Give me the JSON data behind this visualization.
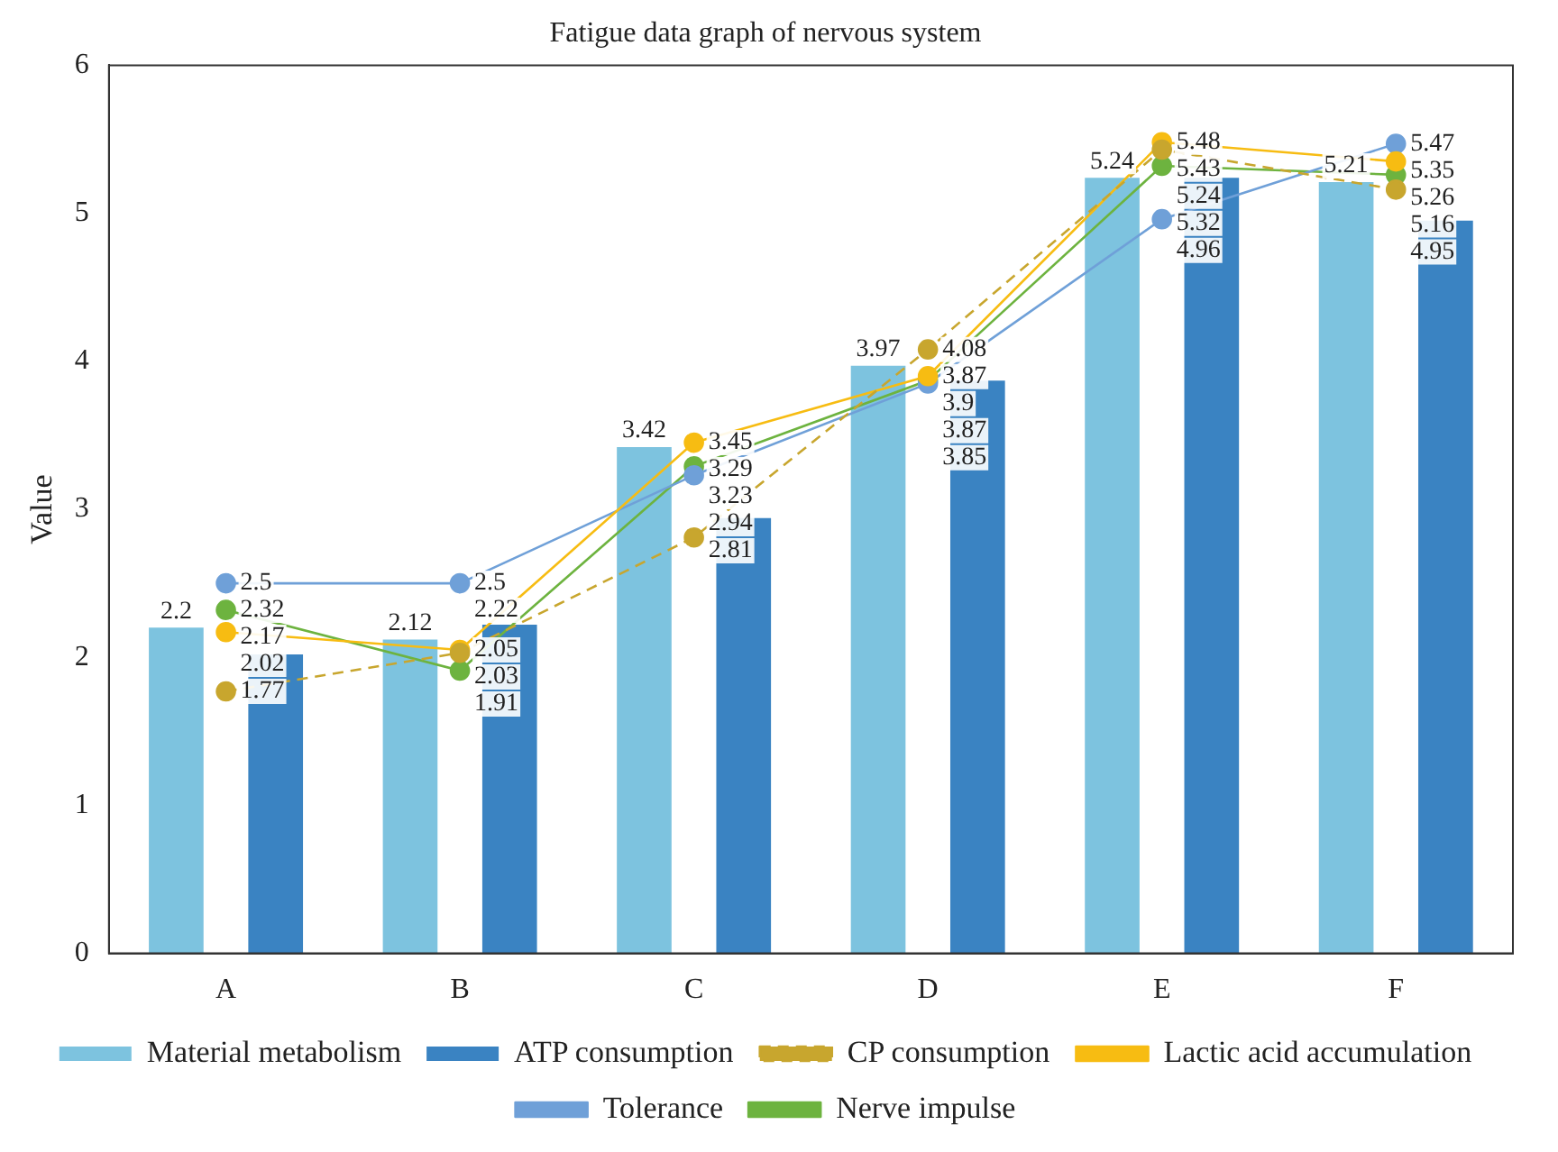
{
  "chart_data": {
    "type": "bar",
    "title": "Fatigue data graph of nervous system",
    "ylabel": "Value",
    "categories": [
      "A",
      "B",
      "C",
      "D",
      "E",
      "F"
    ],
    "series": [
      {
        "name": "Material metabolism",
        "color": "#7dc3df",
        "values": [
          2.2,
          2.12,
          3.42,
          3.97,
          5.24,
          5.21
        ]
      },
      {
        "name": "ATP consumption",
        "color": "#3a83c2",
        "values": [
          2.02,
          2.22,
          2.94,
          3.87,
          5.24,
          4.95
        ]
      },
      {
        "name": "CP consumption",
        "type": "line",
        "color": "#c8a62e",
        "line_style": "dashed",
        "marker": "circle",
        "values": [
          1.77,
          2.03,
          2.81,
          4.08,
          5.43,
          5.16
        ]
      },
      {
        "name": "Lactic acid accumulation",
        "type": "line",
        "color": "#f7bc12",
        "line_style": "solid",
        "marker": "circle",
        "values": [
          2.17,
          2.05,
          3.45,
          3.9,
          5.48,
          5.35
        ]
      },
      {
        "name": "Tolerance",
        "type": "line",
        "color": "#6fa0d8",
        "line_style": "solid",
        "marker": "circle",
        "values": [
          2.5,
          2.5,
          3.23,
          3.85,
          4.96,
          5.47
        ]
      },
      {
        "name": "Nerve impulse",
        "type": "line",
        "color": "#6db33f",
        "line_style": "solid",
        "marker": "circle",
        "values": [
          2.32,
          1.91,
          3.29,
          3.87,
          5.32,
          5.26
        ]
      }
    ],
    "ylim": [
      0,
      6
    ],
    "yticks": [
      0,
      1,
      2,
      3,
      4,
      5,
      6
    ],
    "grid": false,
    "legend": "bottom",
    "data_labels": true
  }
}
